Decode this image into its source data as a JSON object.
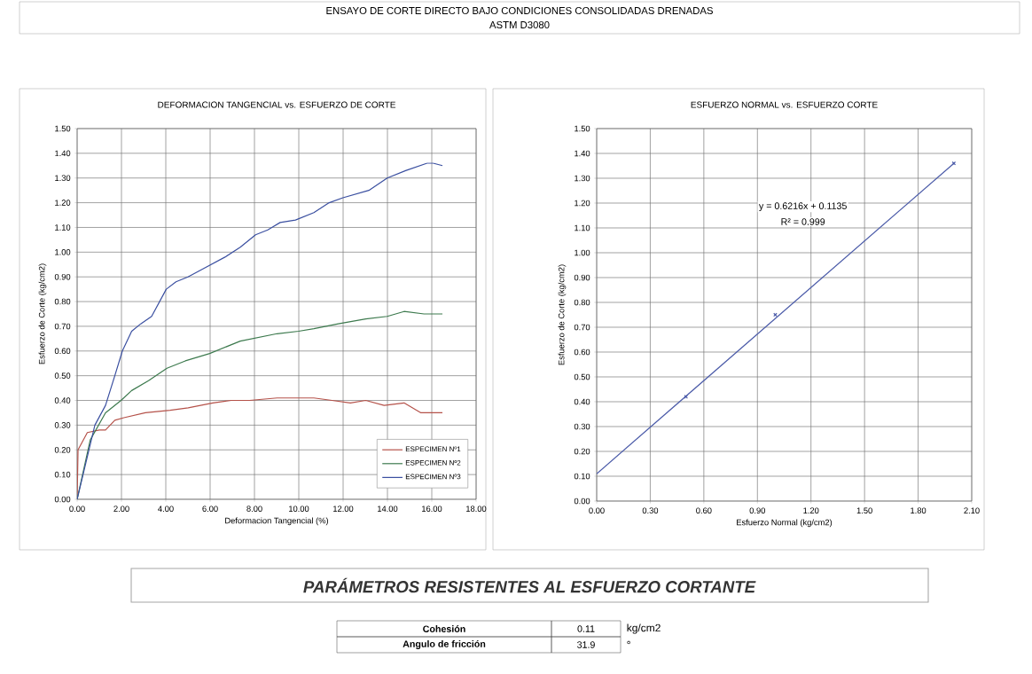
{
  "chart_data": [
    {
      "type": "other",
      "title": "ENSAYO DE CORTE DIRECTO BAJO CONDICIONES CONSOLIDADAS DRENADAS",
      "subtitle": "ASTM D3080"
    },
    {
      "type": "line",
      "title": "DEFORMACION TANGENCIAL vs. ESFUERZO DE CORTE",
      "xlabel": "Deformacion Tangencial (%)",
      "ylabel": "Esfuerzo de Corte (kg/cm2)",
      "xlim": [
        0,
        18
      ],
      "ylim": [
        0,
        1.5
      ],
      "xticks": [
        {
          "value": 0,
          "label": "0.00"
        },
        {
          "value": 2,
          "label": "2.00"
        },
        {
          "value": 4,
          "label": "4.00"
        },
        {
          "value": 6,
          "label": "6.00"
        },
        {
          "value": 8,
          "label": "8.00"
        },
        {
          "value": 10,
          "label": "10.00"
        },
        {
          "value": 12,
          "label": "12.00"
        },
        {
          "value": 14,
          "label": "14.00"
        },
        {
          "value": 16,
          "label": "16.00"
        },
        {
          "value": 18,
          "label": "18.00"
        }
      ],
      "yticks": [
        {
          "value": 0,
          "label": "0.00"
        },
        {
          "value": 0.1,
          "label": "0.10"
        },
        {
          "value": 0.2,
          "label": "0.20"
        },
        {
          "value": 0.3,
          "label": "0.30"
        },
        {
          "value": 0.4,
          "label": "0.40"
        },
        {
          "value": 0.5,
          "label": "0.50"
        },
        {
          "value": 0.6,
          "label": "0.60"
        },
        {
          "value": 0.7,
          "label": "0.70"
        },
        {
          "value": 0.8,
          "label": "0.80"
        },
        {
          "value": 0.9,
          "label": "0.90"
        },
        {
          "value": 1.0,
          "label": "1.00"
        },
        {
          "value": 1.1,
          "label": "1.10"
        },
        {
          "value": 1.2,
          "label": "1.20"
        },
        {
          "value": 1.3,
          "label": "1.30"
        },
        {
          "value": 1.4,
          "label": "1.40"
        },
        {
          "value": 1.5,
          "label": "1.50"
        }
      ],
      "grid": true,
      "legend": "bottom right",
      "series": [
        {
          "name": "ESPECIMEN Nº1",
          "color": "#b5524a",
          "x": [
            0,
            0.04,
            0.46,
            1.0,
            1.28,
            1.7,
            2.11,
            3.08,
            4.19,
            5.01,
            6.12,
            6.95,
            7.78,
            9.02,
            10.4,
            10.68,
            11.5,
            12.33,
            13.02,
            13.85,
            14.75,
            15.51,
            16.48
          ],
          "values": [
            0,
            0.2,
            0.27,
            0.28,
            0.28,
            0.32,
            0.33,
            0.35,
            0.36,
            0.37,
            0.39,
            0.4,
            0.4,
            0.41,
            0.41,
            0.41,
            0.4,
            0.39,
            0.4,
            0.38,
            0.39,
            0.35,
            0.35
          ]
        },
        {
          "name": "ESPECIMEN Nº2",
          "color": "#3d7a4e",
          "x": [
            0,
            0.59,
            1.28,
            1.98,
            2.46,
            3.22,
            4.05,
            4.88,
            5.98,
            7.36,
            9.02,
            9.99,
            10.68,
            11.78,
            13.02,
            13.99,
            14.75,
            15.65,
            16.48
          ],
          "values": [
            0,
            0.24,
            0.35,
            0.4,
            0.44,
            0.48,
            0.53,
            0.56,
            0.59,
            0.64,
            0.67,
            0.68,
            0.69,
            0.71,
            0.73,
            0.74,
            0.76,
            0.75,
            0.75
          ]
        },
        {
          "name": "ESPECIMEN Nº3",
          "color": "#3a4fa0",
          "x": [
            0,
            0.8,
            1.28,
            1.7,
            2.04,
            2.46,
            2.87,
            3.36,
            4.02,
            4.46,
            5.0,
            5.84,
            6.67,
            7.36,
            8.05,
            8.6,
            9.16,
            9.85,
            10.68,
            11.37,
            11.99,
            13.16,
            13.99,
            14.82,
            15.79,
            16.06,
            16.48
          ],
          "values": [
            0,
            0.3,
            0.38,
            0.5,
            0.6,
            0.68,
            0.71,
            0.74,
            0.85,
            0.88,
            0.9,
            0.94,
            0.98,
            1.02,
            1.07,
            1.09,
            1.12,
            1.13,
            1.16,
            1.2,
            1.22,
            1.25,
            1.3,
            1.33,
            1.36,
            1.36,
            1.35
          ]
        }
      ]
    },
    {
      "type": "scatter",
      "title": "ESFUERZO NORMAL vs. ESFUERZO CORTE",
      "xlabel": "Esfuerzo Normal (kg/cm2)",
      "ylabel": "Esfuerzo de Corte (kg/cm2)",
      "xlim": [
        0,
        2.1
      ],
      "ylim": [
        0,
        1.5
      ],
      "xticks": [
        {
          "value": 0,
          "label": "0.00"
        },
        {
          "value": 0.3,
          "label": "0.30"
        },
        {
          "value": 0.6,
          "label": "0.60"
        },
        {
          "value": 0.9,
          "label": "0.90"
        },
        {
          "value": 1.2,
          "label": "1.20"
        },
        {
          "value": 1.5,
          "label": "1.50"
        },
        {
          "value": 1.8,
          "label": "1.80"
        },
        {
          "value": 2.1,
          "label": "2.10"
        }
      ],
      "yticks": [
        {
          "value": 0,
          "label": "0.00"
        },
        {
          "value": 0.1,
          "label": "0.10"
        },
        {
          "value": 0.2,
          "label": "0.20"
        },
        {
          "value": 0.3,
          "label": "0.30"
        },
        {
          "value": 0.4,
          "label": "0.40"
        },
        {
          "value": 0.5,
          "label": "0.50"
        },
        {
          "value": 0.6,
          "label": "0.60"
        },
        {
          "value": 0.7,
          "label": "0.70"
        },
        {
          "value": 0.8,
          "label": "0.80"
        },
        {
          "value": 0.9,
          "label": "0.90"
        },
        {
          "value": 1.0,
          "label": "1.00"
        },
        {
          "value": 1.1,
          "label": "1.10"
        },
        {
          "value": 1.2,
          "label": "1.20"
        },
        {
          "value": 1.3,
          "label": "1.30"
        },
        {
          "value": 1.4,
          "label": "1.40"
        },
        {
          "value": 1.5,
          "label": "1.50"
        }
      ],
      "grid": true,
      "annotations": [
        "y = 0.6216x + 0.1135",
        "R² = 0.999"
      ],
      "series": [
        {
          "type": "scatter",
          "marker": "cross",
          "color": "#4a5aa8",
          "x": [
            0.5,
            1.0,
            2.0
          ],
          "values": [
            0.42,
            0.75,
            1.36
          ]
        },
        {
          "type": "line",
          "marker": "none",
          "color": "#4a5aa8",
          "x": [
            0,
            2.0
          ],
          "values": [
            0.11,
            1.36
          ]
        }
      ]
    },
    {
      "type": "other",
      "title": "PARÁMETROS RESISTENTES AL ESFUERZO CORTANTE",
      "categories": [
        "Cohesión",
        "Angulo de fricción"
      ],
      "values": [
        0.11,
        31.9
      ],
      "data_labels": true,
      "annotations": [
        "kg/cm2",
        "°"
      ]
    }
  ]
}
